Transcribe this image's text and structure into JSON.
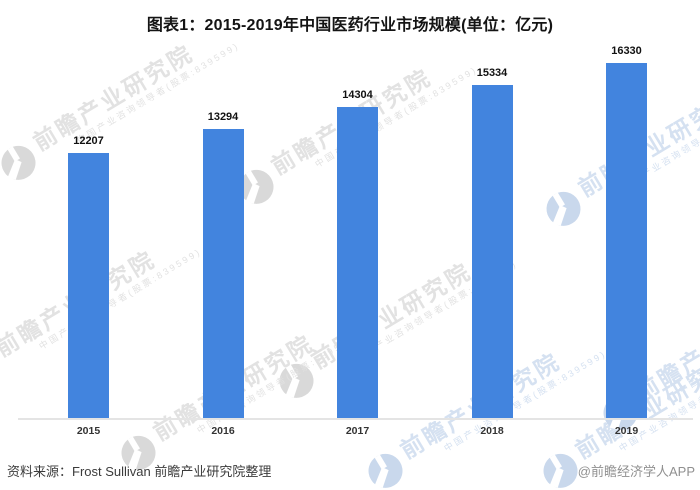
{
  "title": "图表1：2015-2019年中国医药行业市场规模(单位：亿元)",
  "chart_data": {
    "type": "bar",
    "title": "图表1：2015-2019年中国医药行业市场规模(单位：亿元)",
    "unit": "亿元",
    "categories": [
      "2015",
      "2016",
      "2017",
      "2018",
      "2019"
    ],
    "values": [
      12207,
      13294,
      14304,
      15334,
      16330
    ],
    "xlabel": "",
    "ylabel": "",
    "ylim": [
      0,
      17000
    ],
    "grid": false,
    "legend": "none",
    "value_labels_shown": true,
    "bar_color": "#4284DE"
  },
  "footer": {
    "source": "资料来源：Frost Sullivan 前瞻产业研究院整理",
    "credit": "@前瞻经济学人APP"
  },
  "watermark": {
    "brand": "前瞻产业研究院",
    "sub": "中国产业咨询领导者(股票:839599)",
    "gray_color": "#e2e2e2",
    "blue_color": "#d5e1f1"
  }
}
